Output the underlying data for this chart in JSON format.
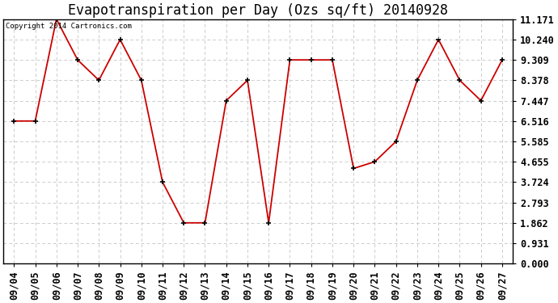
{
  "title": "Evapotranspiration per Day (Ozs sq/ft) 20140928",
  "copyright": "Copyright 2014 Cartronics.com",
  "dates": [
    "09/04",
    "09/05",
    "09/06",
    "09/07",
    "09/08",
    "09/09",
    "09/10",
    "09/11",
    "09/12",
    "09/13",
    "09/14",
    "09/15",
    "09/16",
    "09/17",
    "09/18",
    "09/19",
    "09/20",
    "09/21",
    "09/22",
    "09/23",
    "09/24",
    "09/25",
    "09/26",
    "09/27"
  ],
  "values": [
    6.516,
    6.516,
    11.171,
    9.309,
    8.378,
    10.24,
    8.378,
    3.724,
    1.862,
    1.862,
    7.447,
    8.378,
    1.862,
    9.309,
    9.309,
    9.309,
    4.347,
    4.655,
    5.585,
    8.378,
    10.24,
    8.378,
    7.447,
    9.309
  ],
  "yticks": [
    0.0,
    0.931,
    1.862,
    2.793,
    3.724,
    4.655,
    5.585,
    6.516,
    7.447,
    8.378,
    9.309,
    10.24,
    11.171
  ],
  "ylim": [
    0.0,
    11.171
  ],
  "line_color": "#cc0000",
  "marker_color": "#000000",
  "grid_color": "#cccccc",
  "background_color": "#ffffff",
  "title_fontsize": 12,
  "tick_fontsize": 8.5,
  "legend_bg": "#cc0000",
  "legend_text_color": "#ffffff"
}
